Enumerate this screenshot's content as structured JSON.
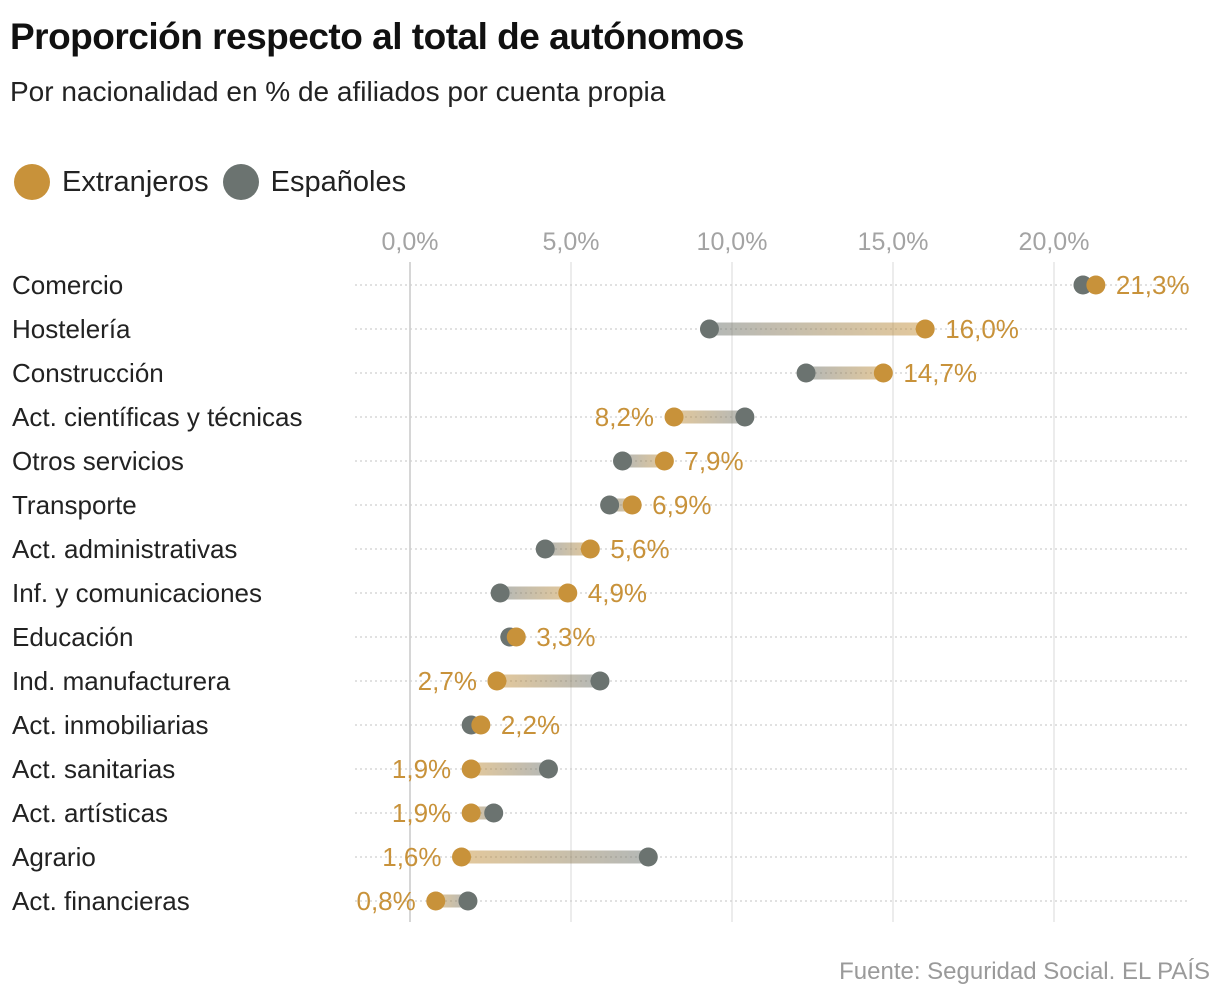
{
  "title": "Proporción respecto al total de autónomos",
  "subtitle": "Por nacionalidad en % de afiliados por cuenta propia",
  "source": "Fuente: Seguridad Social. EL PAÍS",
  "colors": {
    "extranjeros": "#C8923A",
    "espanoles": "#6B7370"
  },
  "chart_data": {
    "type": "dumbbell",
    "xlim": [
      0,
      25
    ],
    "xticks": [
      0,
      5,
      10,
      15,
      20
    ],
    "xtick_labels": [
      "0,0%",
      "5,0%",
      "10,0%",
      "15,0%",
      "20,0%"
    ],
    "legend": [
      {
        "name": "Extranjeros"
      },
      {
        "name": "Españoles"
      }
    ],
    "legend_placement": "top-left",
    "grid": true,
    "categories": [
      "Comercio",
      "Hostelería",
      "Construcción",
      "Act. científicas y técnicas",
      "Otros servicios",
      "Transporte",
      "Act. administrativas",
      "Inf. y comunicaciones",
      "Educación",
      "Ind. manufacturera",
      "Act. inmobiliarias",
      "Act. sanitarias",
      "Act. artísticas",
      "Agrario",
      "Act. financieras"
    ],
    "series": [
      {
        "name": "Extranjeros",
        "values": [
          21.3,
          16.0,
          14.7,
          8.2,
          7.9,
          6.9,
          5.6,
          4.9,
          3.3,
          2.7,
          2.2,
          1.9,
          1.9,
          1.6,
          0.8
        ],
        "labels": [
          "21,3%",
          "16,0%",
          "14,7%",
          "8,2%",
          "7,9%",
          "6,9%",
          "5,6%",
          "4,9%",
          "3,3%",
          "2,7%",
          "2,2%",
          "1,9%",
          "1,9%",
          "1,6%",
          "0,8%"
        ]
      },
      {
        "name": "Españoles",
        "values": [
          20.9,
          9.3,
          12.3,
          10.4,
          6.6,
          6.2,
          4.2,
          2.8,
          3.1,
          5.9,
          1.9,
          4.3,
          2.6,
          7.4,
          1.8
        ]
      }
    ]
  }
}
